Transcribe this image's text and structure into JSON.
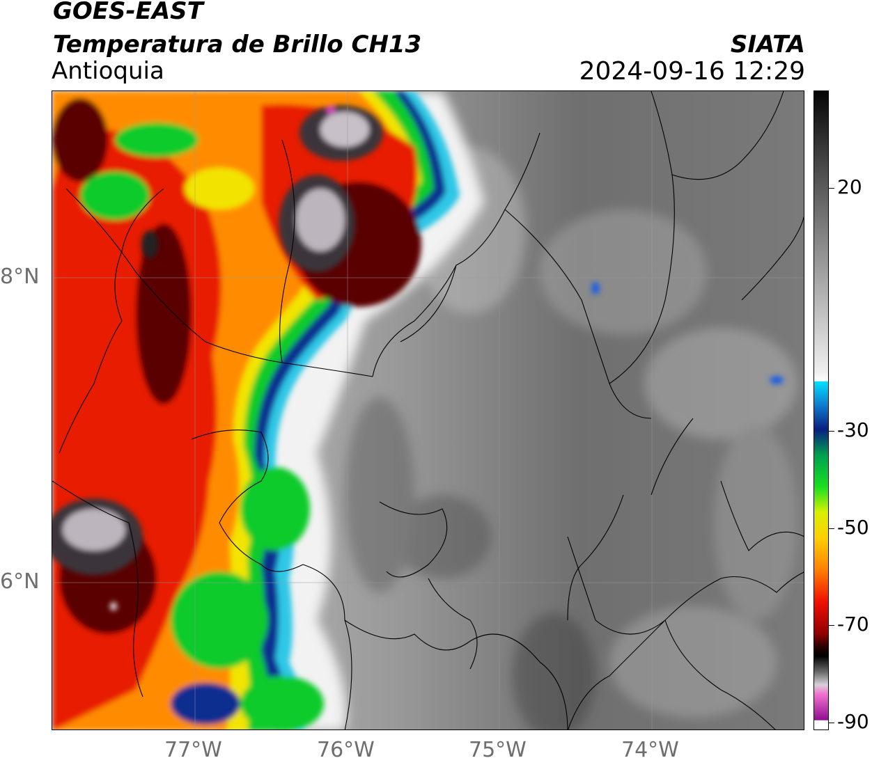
{
  "header": {
    "satellite": "GOES-EAST",
    "product": "Temperatura de Brillo CH13",
    "region": "Antioquia",
    "agency": "SIATA",
    "datetime": "2024-09-16 12:29"
  },
  "map": {
    "lat_labels": [
      "8°N",
      "6°N"
    ],
    "lon_labels": [
      "77°W",
      "76°W",
      "75°W",
      "74°W"
    ],
    "lat_range": [
      5.0,
      9.2
    ],
    "lon_range": [
      -77.95,
      -73.05
    ]
  },
  "colorbar": {
    "labels": [
      "20",
      "-30",
      "-50",
      "-70",
      "-90"
    ],
    "range": [
      -90,
      40
    ]
  }
}
